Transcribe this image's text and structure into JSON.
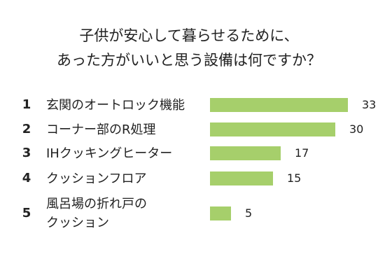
{
  "title": {
    "line1": "子供が安心して暮らせるために、",
    "line2": "あった方がいいと思う設備は何ですか？"
  },
  "colors": {
    "bar": "#a6cf6b",
    "text": "#222222",
    "background": "#ffffff"
  },
  "chart_data": {
    "type": "bar",
    "orientation": "horizontal",
    "title": "子供が安心して暮らせるために、あった方がいいと思う設備は何ですか？",
    "ranks": [
      "1",
      "2",
      "3",
      "4",
      "5"
    ],
    "categories": [
      "玄関のオートロック機能",
      "コーナー部のR処理",
      "IHクッキングヒーター",
      "クッションフロア",
      "風呂場の折れ戸のクッション"
    ],
    "label_lines": [
      [
        "玄関のオートロック機能"
      ],
      [
        "コーナー部のR処理"
      ],
      [
        "IHクッキングヒーター"
      ],
      [
        "クッションフロア"
      ],
      [
        "風呂場の折れ戸の",
        "クッション"
      ]
    ],
    "values": [
      33,
      30,
      17,
      15,
      5
    ],
    "xlim": [
      0,
      33
    ],
    "grid": false,
    "data_labels": true
  }
}
